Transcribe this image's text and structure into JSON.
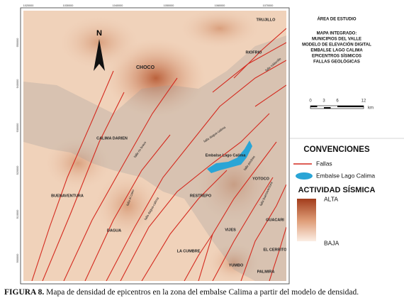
{
  "map": {
    "coords_top": [
      "1020000",
      "1030000",
      "1040000",
      "1050000",
      "1060000",
      "1070000"
    ],
    "coords_left": [
      "950000",
      "940000",
      "930000",
      "920000",
      "910000",
      "900000"
    ],
    "north": "N",
    "places": [
      "TRUJILLO",
      "RIOFRIO",
      "CHOCO",
      "CALIMA DARIEN",
      "Embalse Lago Calima",
      "BUENAVENTURA",
      "RESTREPO",
      "YOTOCO",
      "DAGUA",
      "VIJES",
      "GUACARI",
      "LA CUMBRE",
      "EL CERRITO",
      "YUMBO",
      "PALMIRA"
    ],
    "faults": [
      "falla dagua-calima",
      "falla rio bravo",
      "falla dagua-calima",
      "falla el cairo",
      "falla piedras",
      "falla buenaventura",
      "falla roldanillo"
    ]
  },
  "legend": {
    "title": "ÁREA DE ESTUDIO",
    "subtitle": [
      "MAPA INTEGRADO:",
      "MUNICIPIOS DEL VALLE",
      "MODELO DE ELEVACIÓN DIGITAL",
      "EMBALSE LAGO CALIMA",
      "EPICENTROS SÍSMICOS",
      "FALLAS GEOLÓGICAS"
    ],
    "scale": [
      "0",
      "3",
      "6",
      "12",
      "km"
    ],
    "conventions": "CONVENCIONES",
    "items": [
      "Fallas",
      "Embalse Lago Calima"
    ],
    "activity": "ACTIVIDAD SÍSMICA",
    "high": "ALTA",
    "low": "BAJA"
  },
  "caption": {
    "label": "FIGURA 8.",
    "text": " Mapa de densidad de epicentros en la zona del embalse Calima a partir del modelo de densidad."
  }
}
